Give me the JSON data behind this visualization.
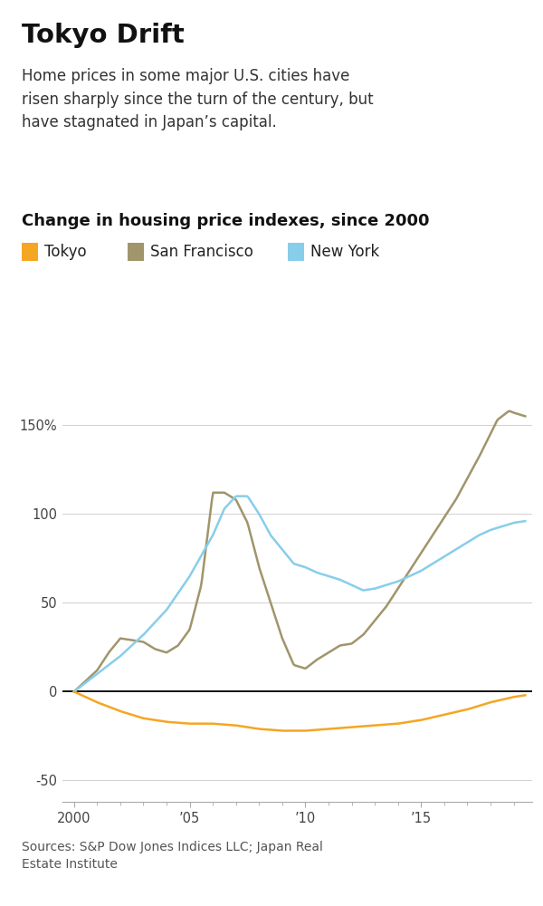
{
  "title": "Tokyo Drift",
  "subtitle": "Home prices in some major U.S. cities have\nrisen sharply since the turn of the century, but\nhave stagnated in Japan’s capital.",
  "chart_label": "Change in housing price indexes, since 2000",
  "legend_items": [
    "Tokyo",
    "San Francisco",
    "New York"
  ],
  "legend_colors": [
    "#F5A623",
    "#A0956B",
    "#87CEEB"
  ],
  "source": "Sources: S&P Dow Jones Indices LLC; Japan Real\nEstate Institute",
  "tokyo_color": "#F5A623",
  "sf_color": "#A0956B",
  "ny_color": "#87CEEB",
  "ylim": [
    -62,
    170
  ],
  "yticks": [
    -50,
    0,
    50,
    100,
    150
  ],
  "ytick_labels": [
    "-50",
    "0",
    "50",
    "100",
    "150%"
  ],
  "background_color": "#ffffff",
  "xlim_start": 1999.5,
  "xlim_end": 2019.8
}
